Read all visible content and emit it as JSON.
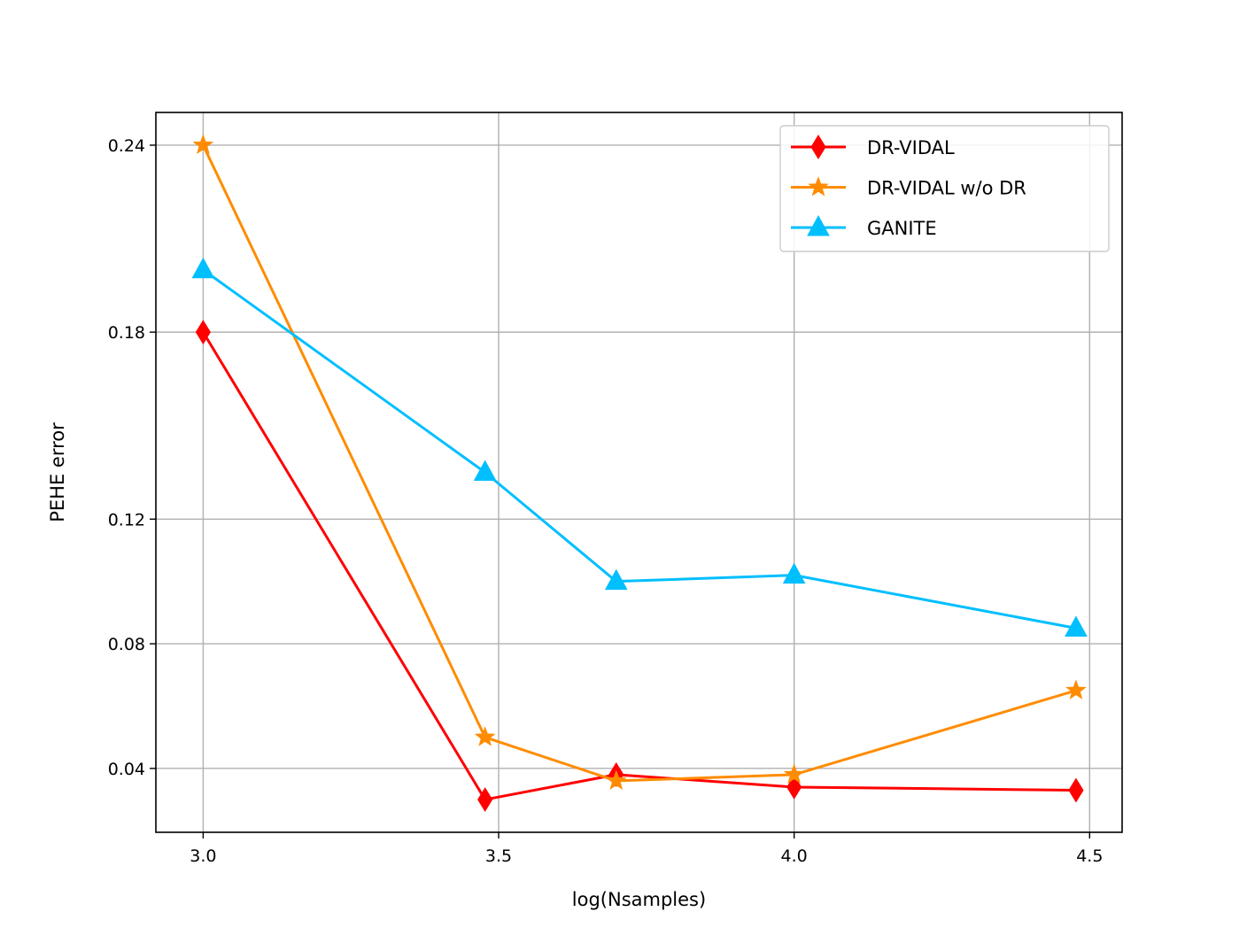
{
  "chart_data": {
    "type": "line",
    "xlabel": "log(Nsamples)",
    "ylabel": "PEHE error",
    "xlim": [
      2.92,
      4.555
    ],
    "ylim": [
      0.0195,
      0.2505
    ],
    "xticks": [
      3.0,
      3.5,
      4.0,
      4.5
    ],
    "xtick_labels": [
      "3.0",
      "3.5",
      "4.0",
      "4.5"
    ],
    "yticks": [
      0.04,
      0.08,
      0.12,
      0.18,
      0.24
    ],
    "ytick_labels": [
      "0.04",
      "0.08",
      "0.12",
      "0.18",
      "0.24"
    ],
    "grid": true,
    "legend_position": "top-right",
    "x": [
      3.0,
      3.477,
      3.699,
      4.0,
      4.477
    ],
    "series": [
      {
        "name": "DR-VIDAL",
        "color": "#ff0000",
        "marker": "thin_diamond",
        "values": [
          0.18,
          0.03,
          0.038,
          0.034,
          0.033
        ]
      },
      {
        "name": "DR-VIDAL w/o DR",
        "color": "#ff8c00",
        "marker": "star",
        "values": [
          0.24,
          0.05,
          0.036,
          0.038,
          0.065
        ]
      },
      {
        "name": "GANITE",
        "color": "#00bfff",
        "marker": "triangle",
        "values": [
          0.2,
          0.135,
          0.1,
          0.102,
          0.085
        ]
      }
    ]
  }
}
